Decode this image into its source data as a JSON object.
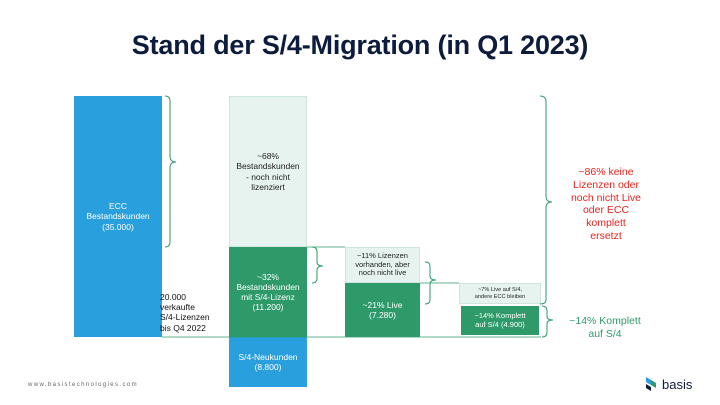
{
  "title": "Stand der S/4-Migration (in Q1 2023)",
  "chart_data": {
    "type": "waterfall",
    "title": "Stand der S/4-Migration (in Q1 2023)",
    "segments": [
      {
        "id": "ecc",
        "label": "ECC\nBestandskunden\n(35.000)",
        "value": 35000
      },
      {
        "id": "not_licensed",
        "label": "~68%\nBestandskunden\n- noch nicht\nlizenziert",
        "percent": 68
      },
      {
        "id": "with_license",
        "label": "~32%\nBestandskunden\nmit S/4-Lizenz\n(11.200)",
        "percent": 32,
        "value": 11200
      },
      {
        "id": "new_customers",
        "label": "S/4-Neukunden\n(8.800)",
        "value": 8800
      },
      {
        "id": "licensed_not_live",
        "label": "~11% Lizenzen\nvorhanden, aber\nnoch nicht live",
        "percent": 11
      },
      {
        "id": "live",
        "label": "~21% Live\n(7.280)",
        "percent": 21,
        "value": 7280
      },
      {
        "id": "live_ecc_kept",
        "label": "~7% Live auf S/4,\nandere ECC bleiben",
        "percent": 7
      },
      {
        "id": "complete",
        "label": "~14% Komplett\nauf S/4 (4.900)",
        "percent": 14,
        "value": 4900
      }
    ],
    "annotations": {
      "licenses_sold": "20.000\nverkaufte\nS/4-Lizenzen\nbis Q4 2022",
      "not_replaced": "~86% keine\nLizenzen oder\nnoch nicht Live\noder ECC\nkomplett\nersetzt",
      "complete_s4": "~14% Komplett\nauf S/4"
    },
    "colors": {
      "blue": "#2a9fde",
      "green": "#2e9a6a",
      "pale": "#e7f3ef",
      "red": "#e8231e"
    }
  },
  "footer": "www.basistechnologies.com",
  "logo_text": "basis"
}
